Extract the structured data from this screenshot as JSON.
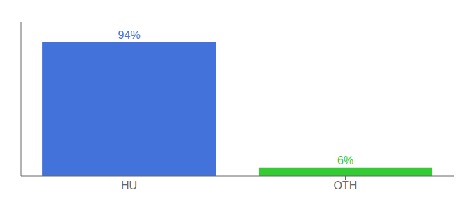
{
  "chart_data": {
    "type": "bar",
    "categories": [
      "HU",
      "OTH"
    ],
    "values": [
      94,
      6
    ],
    "colors": [
      "#4472DB",
      "#33CC33"
    ],
    "value_labels": [
      "94%",
      "6%"
    ],
    "data_labels": true,
    "ylim": [
      0,
      108
    ],
    "tick_labels": "x",
    "grid": false
  }
}
